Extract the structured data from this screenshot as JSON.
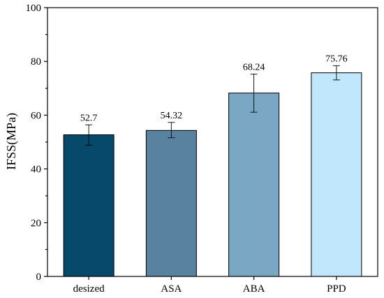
{
  "chart_data": {
    "type": "bar",
    "title": "",
    "xlabel": "",
    "ylabel": "IFSS(MPa)",
    "ylim": [
      0,
      100
    ],
    "yticks": [
      0,
      20,
      40,
      60,
      80,
      100
    ],
    "categories": [
      "desized",
      "ASA",
      "ABA",
      "PPD"
    ],
    "values": [
      52.7,
      54.32,
      68.24,
      75.76
    ],
    "value_labels": [
      "52.7",
      "54.32",
      "68.24",
      "75.76"
    ],
    "error_bars": [
      {
        "low": 48.8,
        "high": 56.4
      },
      {
        "low": 51.6,
        "high": 57.3
      },
      {
        "low": 61.1,
        "high": 75.3
      },
      {
        "low": 73.1,
        "high": 78.4
      }
    ],
    "colors": [
      "#06496b",
      "#58829f",
      "#7aa8c4",
      "#bfe6fb"
    ],
    "grid": false,
    "legend": "none"
  }
}
